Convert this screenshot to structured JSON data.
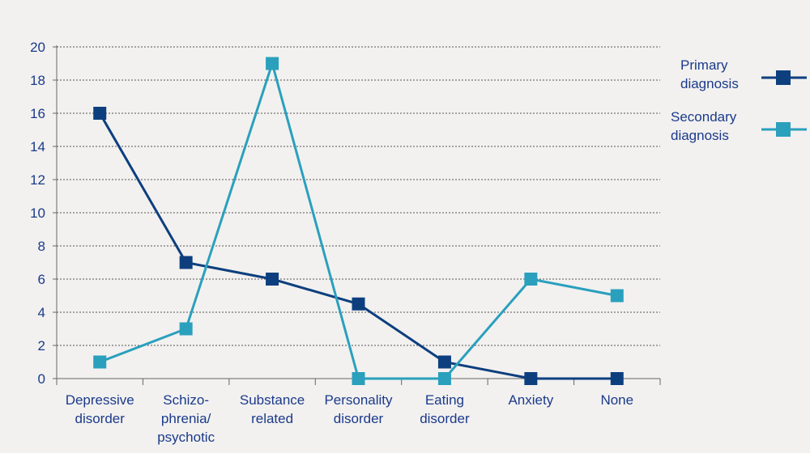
{
  "chart_data": {
    "type": "line",
    "categories": [
      [
        "Depressive",
        "disorder"
      ],
      [
        "Schizo-",
        "phrenia/",
        "psychotic"
      ],
      [
        "Substance",
        "related"
      ],
      [
        "Personality",
        "disorder"
      ],
      [
        "Eating",
        "disorder"
      ],
      [
        "Anxiety"
      ],
      [
        "None"
      ]
    ],
    "series": [
      {
        "name_lines": [
          "Primary",
          "diagnosis"
        ],
        "color": "#0d3f7e",
        "values": [
          16,
          7,
          6,
          4.5,
          1,
          0,
          0
        ]
      },
      {
        "name_lines": [
          "Secondary",
          "diagnosis"
        ],
        "color": "#2aa0bd",
        "values": [
          1,
          3,
          19,
          0,
          0,
          6,
          5
        ]
      }
    ],
    "yticks": [
      "0",
      "2",
      "4",
      "6",
      "8",
      "10",
      "12",
      "14",
      "16",
      "18",
      "20"
    ],
    "ylim": [
      0,
      20
    ],
    "grid": "horizontal dotted",
    "legend_position": "right"
  }
}
